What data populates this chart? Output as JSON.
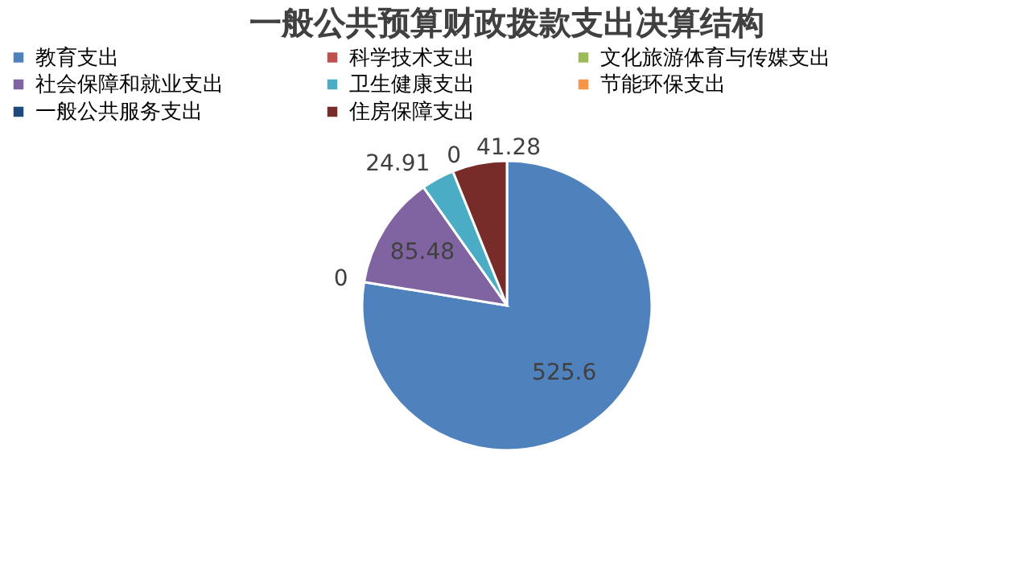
{
  "chart_data": {
    "type": "pie",
    "title": "一般公共预算财政拨款支出决算结构",
    "categories": [
      "教育支出",
      "科学技术支出",
      "文化旅游体育与传媒支出",
      "社会保障和就业支出",
      "卫生健康支出",
      "节能环保支出",
      "一般公共服务支出",
      "住房保障支出"
    ],
    "values": [
      525.6,
      0,
      0,
      85.48,
      24.91,
      0,
      0,
      41.28
    ],
    "value_labels": [
      "525.6",
      "0",
      null,
      "85.48",
      "24.91",
      "0",
      null,
      "41.28"
    ],
    "colors": [
      "#4f81bd",
      "#c0504d",
      "#9bbb59",
      "#8064a2",
      "#4bacc6",
      "#f79646",
      "#1f497d",
      "#772c2a"
    ],
    "legend": "top"
  }
}
